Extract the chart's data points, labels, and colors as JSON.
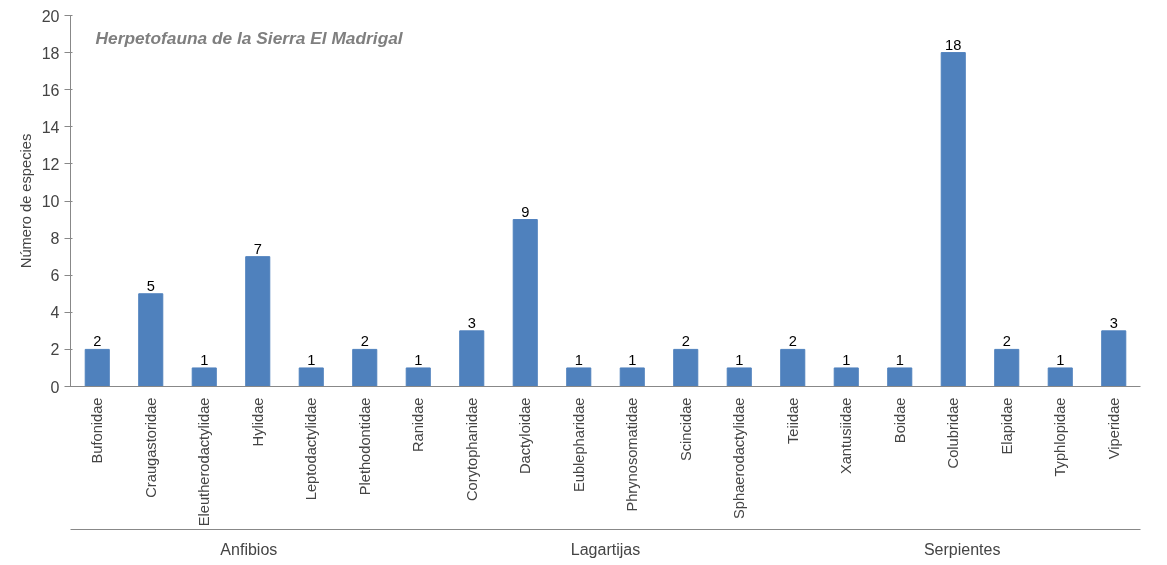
{
  "chart_data": {
    "type": "bar",
    "title": "Herpetofauna de la Sierra El Madrigal",
    "ylabel": "Número de especies",
    "categories": [
      "Bufonidae",
      "Craugastoridae",
      "Eleutherodactylidae",
      "Hylidae",
      "Leptodactylidae",
      "Plethodontidae",
      "Ranidae",
      "Corytophanidae",
      "Dactyloidae",
      "Eublepharidae",
      "Phrynosomatidae",
      "Scincidae",
      "Sphaerodactylidae",
      "Teiidae",
      "Xantusiidae",
      "Boidae",
      "Colubridae",
      "Elapidae",
      "Typhlopidae",
      "Viperidae"
    ],
    "values": [
      2,
      5,
      1,
      7,
      1,
      2,
      1,
      3,
      9,
      1,
      1,
      2,
      1,
      2,
      1,
      1,
      18,
      2,
      1,
      3
    ],
    "color": "#4f81bd",
    "ylim": [
      0,
      20
    ],
    "yticks": [
      0,
      2,
      4,
      6,
      8,
      10,
      12,
      14,
      16,
      18,
      20
    ],
    "data_labels": true,
    "grid": false,
    "annotations": [
      "Anfibios",
      "Lagartijas",
      "Serpientes"
    ]
  }
}
